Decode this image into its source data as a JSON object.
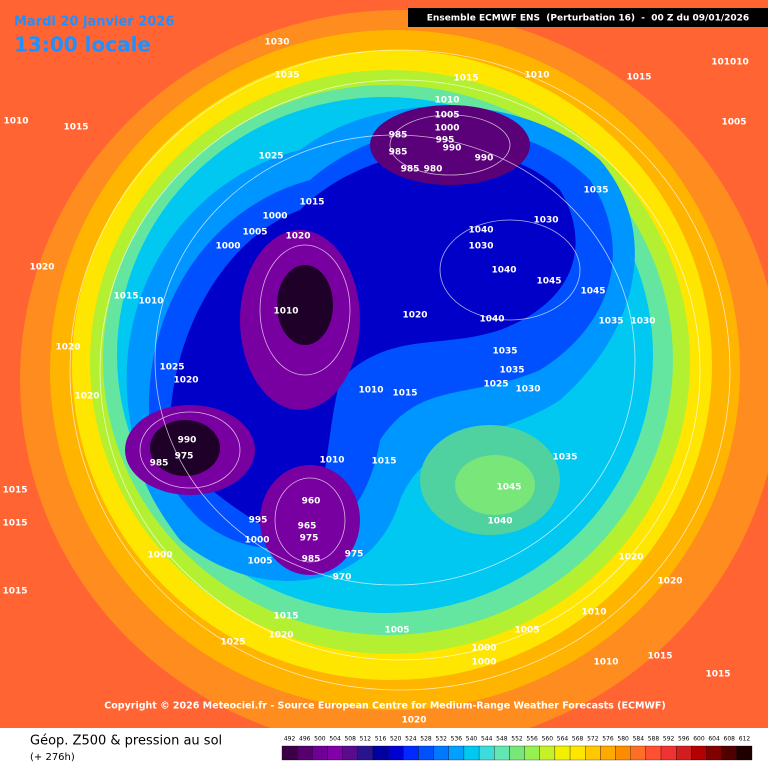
{
  "header": {
    "date": "Mardi 20 janvier 2026",
    "time": "13:00 locale",
    "model": "Ensemble ECMWF ENS  (Perturbation 16)  -  00 Z du 09/01/2026"
  },
  "copyright": "Copyright © 2026 Meteociel.fr - Source European Centre for Medium-Range Weather Forecasts (ECMWF)",
  "footer": {
    "title": "Géop. Z500 & pression au sol",
    "lead": "(+ 276h)"
  },
  "pressure_labels": [
    1030,
    1035,
    1015,
    1010,
    1015,
    101010,
    1010,
    1015,
    1005,
    1010,
    1005,
    1000,
    985,
    995,
    990,
    985,
    990,
    985,
    980,
    1025,
    1035,
    1000,
    1015,
    1005,
    1020,
    1030,
    1040,
    1030,
    1000,
    1040,
    1045,
    1045,
    1020,
    1015,
    1010,
    1010,
    1020,
    1040,
    1035,
    1030,
    1020,
    1025,
    1020,
    1035,
    1035,
    1025,
    1030,
    1020,
    1010,
    1015,
    990,
    975,
    985,
    1010,
    1015,
    1035,
    1045,
    960,
    965,
    975,
    985,
    975,
    970,
    995,
    1000,
    1005,
    1000,
    1040,
    1020,
    1020,
    1015,
    1015,
    1015,
    1015,
    1020,
    1025,
    1005,
    1005,
    1000,
    1000,
    1010,
    1010,
    1015,
    1015,
    1020
  ],
  "colorbar": {
    "labels": [
      492,
      496,
      500,
      504,
      508,
      512,
      516,
      520,
      524,
      528,
      532,
      536,
      540,
      544,
      548,
      552,
      556,
      560,
      564,
      568,
      572,
      576,
      580,
      584,
      588,
      592,
      596,
      600,
      604,
      608,
      612
    ],
    "colors": [
      "#3c0046",
      "#55006e",
      "#6e0096",
      "#8200aa",
      "#5a0a8c",
      "#28148c",
      "#0000a0",
      "#0000d2",
      "#0028ff",
      "#0050ff",
      "#0078ff",
      "#00a0ff",
      "#00c8f0",
      "#3cdcdc",
      "#64e6b4",
      "#78e678",
      "#96f050",
      "#c8f028",
      "#f0f000",
      "#ffe600",
      "#ffc800",
      "#ffaa00",
      "#ff8c00",
      "#ff6e28",
      "#ff5032",
      "#f03232",
      "#d21e1e",
      "#b40000",
      "#820000",
      "#500000",
      "#1e0000"
    ]
  }
}
